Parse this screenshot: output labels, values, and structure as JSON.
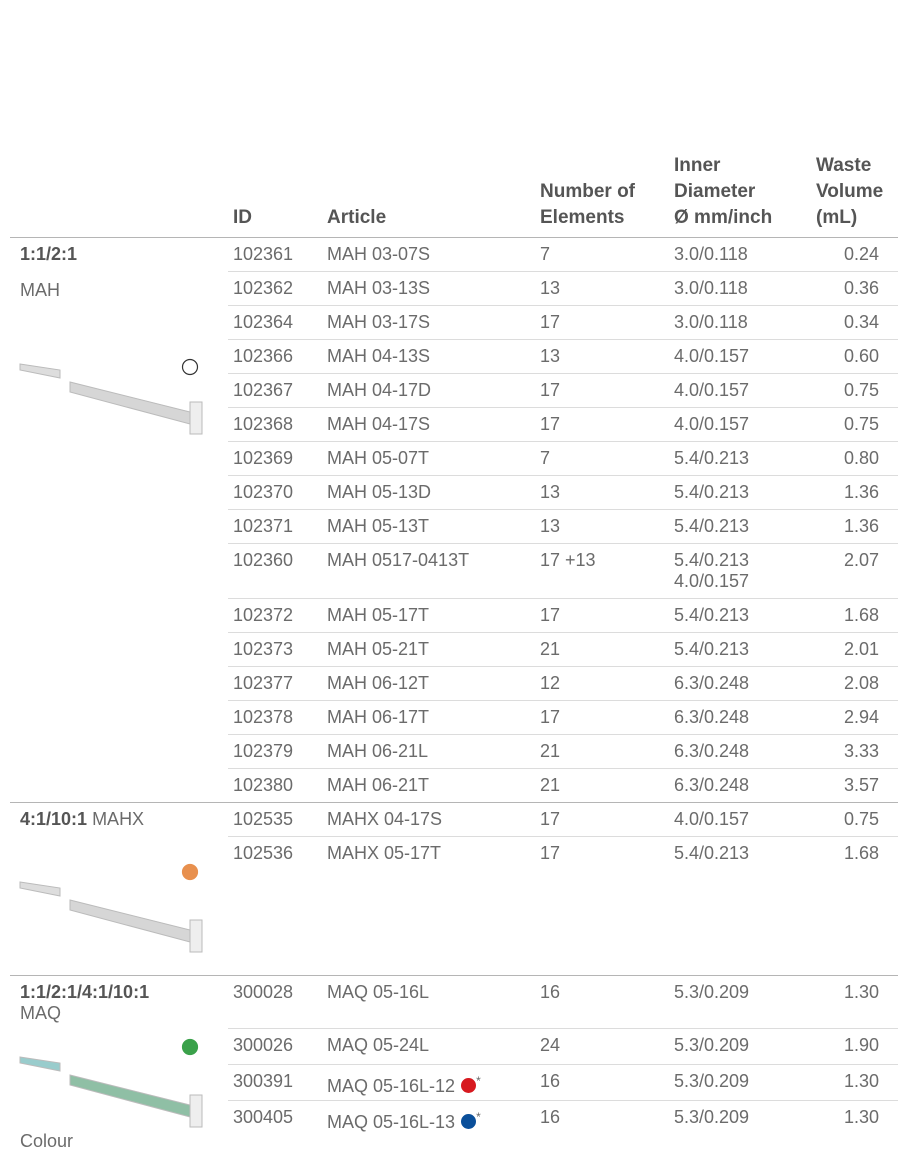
{
  "table": {
    "columns": [
      [
        "ID"
      ],
      [
        "Article"
      ],
      [
        "Number of",
        "Elements"
      ],
      [
        "Inner",
        "Diameter",
        "Ø mm/inch"
      ],
      [
        "Waste",
        "Volume",
        "(mL)"
      ]
    ],
    "groups": [
      {
        "ratio": "1:1/2:1",
        "name": "MAH",
        "color": "#ffffff",
        "rows": [
          {
            "id": "102361",
            "article": "MAH 03-07S",
            "elements": "7",
            "diameter": [
              "3.0/0.118"
            ],
            "waste": "0.24"
          },
          {
            "id": "102362",
            "article": "MAH 03-13S",
            "elements": "13",
            "diameter": [
              "3.0/0.118"
            ],
            "waste": "0.36"
          },
          {
            "id": "102364",
            "article": "MAH 03-17S",
            "elements": "17",
            "diameter": [
              "3.0/0.118"
            ],
            "waste": "0.34"
          },
          {
            "id": "102366",
            "article": "MAH 04-13S",
            "elements": "13",
            "diameter": [
              "4.0/0.157"
            ],
            "waste": "0.60"
          },
          {
            "id": "102367",
            "article": "MAH 04-17D",
            "elements": "17",
            "diameter": [
              "4.0/0.157"
            ],
            "waste": "0.75"
          },
          {
            "id": "102368",
            "article": "MAH 04-17S",
            "elements": "17",
            "diameter": [
              "4.0/0.157"
            ],
            "waste": "0.75"
          },
          {
            "id": "102369",
            "article": "MAH 05-07T",
            "elements": "7",
            "diameter": [
              "5.4/0.213"
            ],
            "waste": "0.80"
          },
          {
            "id": "102370",
            "article": "MAH 05-13D",
            "elements": "13",
            "diameter": [
              "5.4/0.213"
            ],
            "waste": "1.36"
          },
          {
            "id": "102371",
            "article": "MAH 05-13T",
            "elements": "13",
            "diameter": [
              "5.4/0.213"
            ],
            "waste": "1.36"
          },
          {
            "id": "102360",
            "article": "MAH 0517-0413T",
            "elements": "17 +13",
            "diameter": [
              "5.4/0.213",
              "4.0/0.157"
            ],
            "waste": "2.07"
          },
          {
            "id": "102372",
            "article": "MAH 05-17T",
            "elements": "17",
            "diameter": [
              "5.4/0.213"
            ],
            "waste": "1.68"
          },
          {
            "id": "102373",
            "article": "MAH 05-21T",
            "elements": "21",
            "diameter": [
              "5.4/0.213"
            ],
            "waste": "2.01"
          },
          {
            "id": "102377",
            "article": "MAH 06-12T",
            "elements": "12",
            "diameter": [
              "6.3/0.248"
            ],
            "waste": "2.08"
          },
          {
            "id": "102378",
            "article": "MAH 06-17T",
            "elements": "17",
            "diameter": [
              "6.3/0.248"
            ],
            "waste": "2.94"
          },
          {
            "id": "102379",
            "article": "MAH 06-21L",
            "elements": "21",
            "diameter": [
              "6.3/0.248"
            ],
            "waste": "3.33"
          },
          {
            "id": "102380",
            "article": "MAH 06-21T",
            "elements": "21",
            "diameter": [
              "6.3/0.248"
            ],
            "waste": "3.57"
          }
        ]
      },
      {
        "ratio": "4:1/10:1",
        "name": "MAHX",
        "color": "#e8904e",
        "rows": [
          {
            "id": "102535",
            "article": "MAHX 04-17S",
            "elements": "17",
            "diameter": [
              "4.0/0.157"
            ],
            "waste": "0.75"
          },
          {
            "id": "102536",
            "article": "MAHX 05-17T",
            "elements": "17",
            "diameter": [
              "5.4/0.213"
            ],
            "waste": "1.68"
          }
        ]
      },
      {
        "ratio": "1:1/2:1/4:1/10:1",
        "name": "MAQ",
        "color": "#3aa14a",
        "note": "Colour",
        "rows": [
          {
            "id": "300028",
            "article": "MAQ 05-16L",
            "elements": "16",
            "diameter": [
              "5.3/0.209"
            ],
            "waste": "1.30"
          },
          {
            "id": "300026",
            "article": "MAQ 05-24L",
            "elements": "24",
            "diameter": [
              "5.3/0.209"
            ],
            "waste": "1.90"
          },
          {
            "id": "300391",
            "article": "MAQ 05-16L-12",
            "dot": "#d7191f",
            "mark": "*",
            "elements": "16",
            "diameter": [
              "5.3/0.209"
            ],
            "waste": "1.30"
          },
          {
            "id": "300405",
            "article": "MAQ 05-16L-13",
            "dot": "#0a4f9a",
            "mark": "*",
            "elements": "16",
            "diameter": [
              "5.3/0.209"
            ],
            "waste": "1.30"
          }
        ]
      }
    ]
  }
}
